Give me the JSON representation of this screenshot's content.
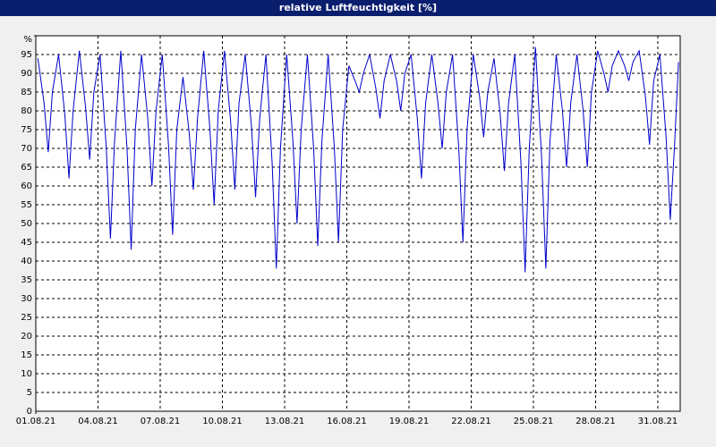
{
  "chart_data": {
    "type": "line",
    "title": "relative Luftfeuchtigkeit [%]",
    "x": [
      0.1,
      0.4,
      0.6,
      0.8,
      1.1,
      1.4,
      1.6,
      1.8,
      2.1,
      2.4,
      2.6,
      2.8,
      3.1,
      3.4,
      3.6,
      3.8,
      4.1,
      4.4,
      4.6,
      4.8,
      5.1,
      5.4,
      5.6,
      5.8,
      6.1,
      6.4,
      6.6,
      6.8,
      7.1,
      7.4,
      7.6,
      7.8,
      8.1,
      8.4,
      8.6,
      8.8,
      9.1,
      9.4,
      9.6,
      9.8,
      10.1,
      10.4,
      10.6,
      10.8,
      11.1,
      11.4,
      11.6,
      11.8,
      12.1,
      12.4,
      12.6,
      12.8,
      13.1,
      13.4,
      13.6,
      13.8,
      14.1,
      14.4,
      14.6,
      14.8,
      15.1,
      15.4,
      15.6,
      15.8,
      16.1,
      16.4,
      16.6,
      16.8,
      17.1,
      17.4,
      17.6,
      17.8,
      18.1,
      18.4,
      18.6,
      18.8,
      19.1,
      19.4,
      19.6,
      19.8,
      20.1,
      20.4,
      20.6,
      20.8,
      21.1,
      21.4,
      21.6,
      21.8,
      22.1,
      22.4,
      22.6,
      22.8,
      23.1,
      23.4,
      23.6,
      23.8,
      24.1,
      24.4,
      24.6,
      24.8,
      25.1,
      25.4,
      25.6,
      25.8,
      26.1,
      26.4,
      26.6,
      26.8,
      27.1,
      27.4,
      27.6,
      27.8,
      28.1,
      28.4,
      28.6,
      28.8,
      29.1,
      29.4,
      29.6,
      29.8,
      30.1,
      30.4,
      30.6,
      30.8,
      31.0
    ],
    "series": [
      {
        "color": "#0000cc",
        "values": [
          94,
          82,
          69,
          85,
          95,
          79,
          62,
          80,
          96,
          81,
          67,
          85,
          95,
          70,
          46,
          72,
          96,
          70,
          43,
          75,
          95,
          78,
          60,
          80,
          95,
          71,
          47,
          75,
          89,
          74,
          59,
          78,
          96,
          75,
          55,
          80,
          96,
          77,
          59,
          82,
          95,
          76,
          57,
          78,
          95,
          66,
          38,
          70,
          95,
          72,
          50,
          75,
          95,
          70,
          44,
          72,
          95,
          70,
          45,
          75,
          92,
          88,
          85,
          90,
          95,
          86,
          78,
          88,
          95,
          88,
          80,
          90,
          95,
          78,
          62,
          82,
          95,
          82,
          70,
          85,
          95,
          70,
          45,
          75,
          95,
          84,
          73,
          85,
          94,
          79,
          64,
          82,
          95,
          66,
          37,
          70,
          97,
          67,
          38,
          72,
          95,
          80,
          65,
          82,
          95,
          80,
          65,
          85,
          96,
          90,
          85,
          92,
          96,
          92,
          88,
          93,
          96,
          84,
          71,
          88,
          95,
          73,
          51,
          70,
          93
        ]
      }
    ],
    "xlim": [
      0,
      31.08
    ],
    "xticks": [
      {
        "value": 0,
        "label": "01.08.21"
      },
      {
        "value": 3,
        "label": "04.08.21"
      },
      {
        "value": 6,
        "label": "07.08.21"
      },
      {
        "value": 9,
        "label": "10.08.21"
      },
      {
        "value": 12,
        "label": "13.08.21"
      },
      {
        "value": 15,
        "label": "16.08.21"
      },
      {
        "value": 18,
        "label": "19.08.21"
      },
      {
        "value": 21,
        "label": "22.08.21"
      },
      {
        "value": 24,
        "label": "25.08.21"
      },
      {
        "value": 27,
        "label": "28.08.21"
      },
      {
        "value": 30,
        "label": "31.08.21"
      }
    ],
    "ylim": [
      0,
      100
    ],
    "yticks": [
      0,
      5,
      10,
      15,
      20,
      25,
      30,
      35,
      40,
      45,
      50,
      55,
      60,
      65,
      70,
      75,
      80,
      85,
      90,
      95,
      {
        "value": 100,
        "label": "%"
      }
    ],
    "grid": true
  }
}
